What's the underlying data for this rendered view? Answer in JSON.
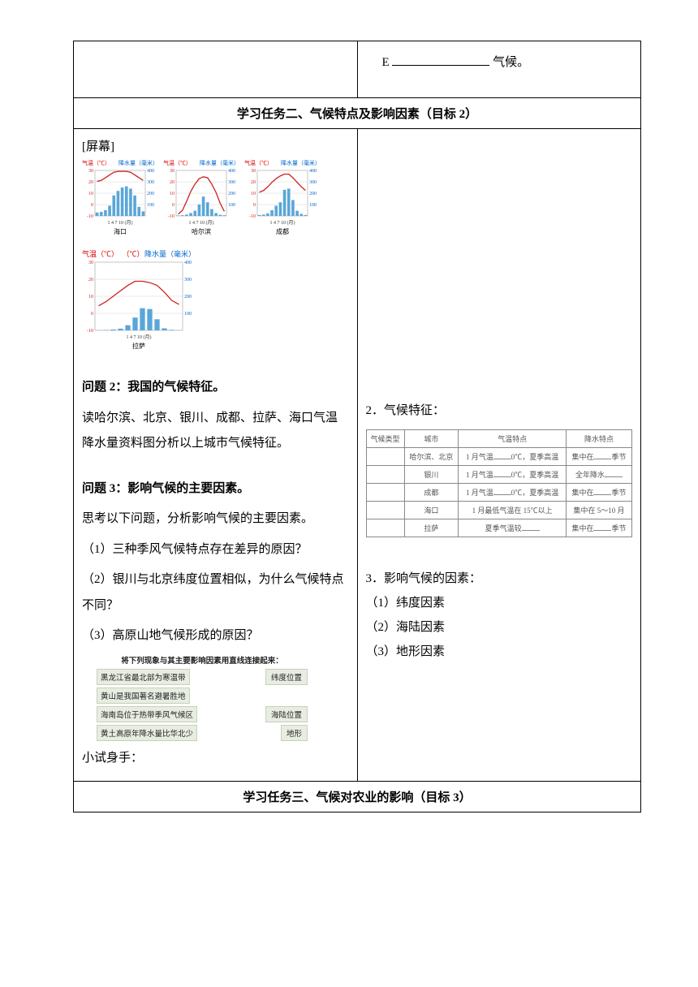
{
  "topRow": {
    "e_prefix": "E",
    "e_suffix": "气候。"
  },
  "task2Header": "学习任务二、气候特点及影响因素（目标 2）",
  "leftCol": {
    "screenLabel": "[屏幕]",
    "chartAxis": {
      "tempLabel": "气温（℃）",
      "precipLabel": "降水量（毫米）",
      "monthsLabel": "1  4  7  10 (月)"
    },
    "chartsRow1": [
      {
        "city": "海口",
        "bars": [
          30,
          35,
          50,
          90,
          180,
          220,
          250,
          260,
          240,
          180,
          80,
          40
        ],
        "temp": [
          18,
          19,
          22,
          25,
          28,
          29,
          29,
          29,
          28,
          25,
          22,
          19
        ]
      },
      {
        "city": "哈尔滨",
        "bars": [
          4,
          6,
          12,
          25,
          45,
          100,
          170,
          120,
          60,
          25,
          10,
          6
        ],
        "temp": [
          -18,
          -14,
          -4,
          7,
          15,
          21,
          23,
          22,
          15,
          6,
          -6,
          -15
        ]
      },
      {
        "city": "成都",
        "bars": [
          8,
          12,
          22,
          50,
          90,
          120,
          230,
          240,
          140,
          45,
          18,
          8
        ],
        "temp": [
          6,
          8,
          12,
          17,
          21,
          24,
          26,
          26,
          22,
          17,
          12,
          8
        ]
      }
    ],
    "chartSingle": {
      "city": "拉萨",
      "bars": [
        1,
        2,
        5,
        10,
        30,
        75,
        130,
        125,
        65,
        12,
        3,
        1
      ],
      "temp": [
        -2,
        1,
        5,
        9,
        13,
        16,
        16,
        15,
        13,
        8,
        2,
        -1
      ]
    },
    "q2_title": "问题 2：我国的气候特征。",
    "q2_text": "读哈尔滨、北京、银川、成都、拉萨、海口气温降水量资料图分析以上城市气候特征。",
    "q3_title": "问题 3：影响气候的主要因素。",
    "q3_intro": "思考以下问题，分析影响气候的主要因素。",
    "q3_1": "（1）三种季风气候特点存在差异的原因？",
    "q3_2": "（2）银川与北京纬度位置相似，为什么气候特点不同？",
    "q3_3": "（3）高原山地气候形成的原因？",
    "tryLabel": "小试身手：",
    "matching": {
      "title": "将下列现象与其主要影响因素用直线连接起来：",
      "left": [
        "黑龙江省最北部为寒温带",
        "黄山是我国著名避暑胜地",
        "海南岛位于热带季风气候区",
        "黄土高原年降水量比华北少"
      ],
      "right": [
        "纬度位置",
        "海陆位置",
        "地形"
      ]
    }
  },
  "rightCol": {
    "featuresTitle": "2．气候特征：",
    "featuresTable": {
      "headers": [
        "气候类型",
        "城市",
        "气温特点",
        "降水特点"
      ],
      "rows": [
        [
          "",
          "哈尔滨、北京",
          "1 月气温___0℃，夏季高温",
          "集中在_______季节"
        ],
        [
          "",
          "银川",
          "1 月气温___0℃，夏季高温",
          "全年降水_______"
        ],
        [
          "",
          "成都",
          "1 月气温___0℃，夏季高温",
          "集中在_______季节"
        ],
        [
          "",
          "海口",
          "1 月最低气温在 15℃以上",
          "集中在 5～10 月"
        ],
        [
          "",
          "拉萨",
          "夏季气温较_____",
          "集中在_______季节"
        ]
      ]
    },
    "factorsTitle": "3．影响气候的因素：",
    "factors": [
      "（1）纬度因素",
      "（2）海陆因素",
      "（3）地形因素"
    ]
  },
  "task3Header": "学习任务三、气候对农业的影响（目标 3）",
  "chartStyle": {
    "barColor": "#5aa6d8",
    "tempColor": "#d02020",
    "gridColor": "#cccccc",
    "leftTicks": [
      "30",
      "20",
      "10",
      "0",
      "-10"
    ],
    "rightTicks": [
      "400",
      "300",
      "200",
      "100"
    ]
  }
}
